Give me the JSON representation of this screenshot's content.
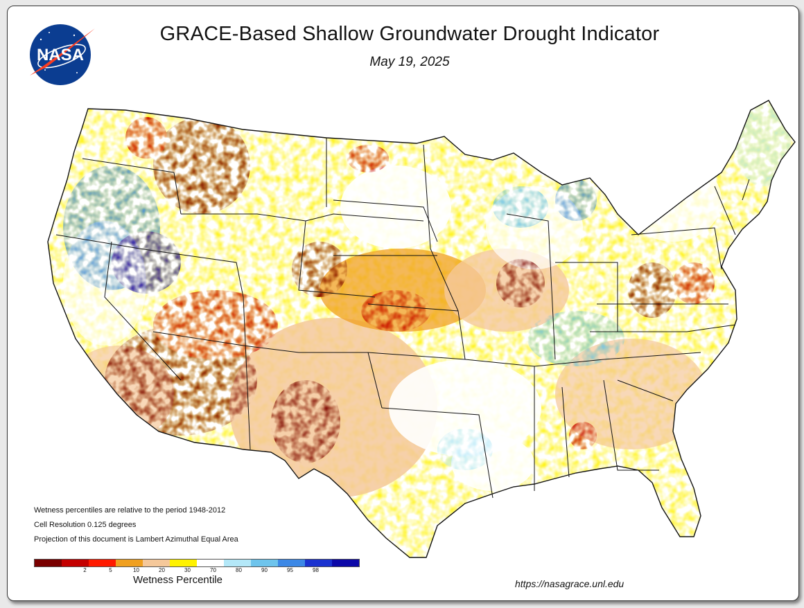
{
  "title": "GRACE-Based Shallow Groundwater Drought Indicator",
  "date": "May 19, 2025",
  "logo": {
    "text": "NASA",
    "icon": "nasa-meatball-logo"
  },
  "notes": [
    "Wetness percentiles are relative to the period 1948-2012",
    "Cell Resolution 0.125 degrees",
    "Projection of this document is Lambert Azimuthal Equal Area"
  ],
  "legend": {
    "title": "Wetness Percentile",
    "colors": [
      "#7a0000",
      "#c40000",
      "#ff1a00",
      "#f0a020",
      "#f5c89a",
      "#fff200",
      "#ffffff",
      "#b4e8f8",
      "#6ec4ec",
      "#3c88e6",
      "#1a32d0",
      "#0c08a8"
    ],
    "tick_labels": [
      "2",
      "5",
      "10",
      "20",
      "30",
      "70",
      "80",
      "90",
      "95",
      "98"
    ]
  },
  "source_url": "https://nasagrace.unl.edu",
  "colors": {
    "frame_border": "#333333",
    "background": "#e9e9e9",
    "state_lines": "#111111"
  }
}
